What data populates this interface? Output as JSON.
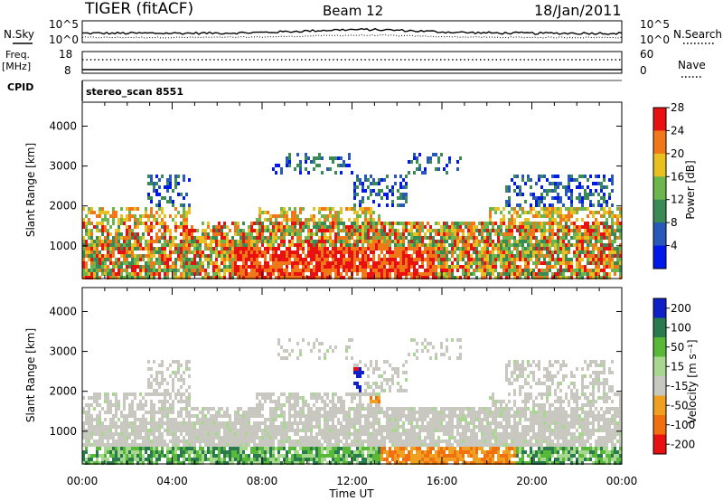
{
  "header": {
    "station": "TIGER (fitACF)",
    "beam": "Beam 12",
    "date": "18/Jan/2011"
  },
  "top_panels": {
    "nsky_label": "N.Sky",
    "nsearch_label": "N.Search",
    "count_ticks": [
      "10^5",
      "10^0"
    ],
    "freq_label_1": "Freq.",
    "freq_label_2": "[MHz]",
    "freq_ticks": [
      "18",
      "8"
    ],
    "nave_label": "Nave",
    "nave_ticks": [
      "60",
      "0"
    ],
    "cpid_label": "CPID",
    "cpid_value": "stereo_scan 8551"
  },
  "chart_data": [
    {
      "type": "heatmap",
      "name": "power",
      "ylabel": "Slant Range [km]",
      "yticks": [
        1000,
        2000,
        3000,
        4000
      ],
      "ylim": [
        180,
        4600
      ],
      "xticks": [
        "00:00",
        "04:00",
        "08:00",
        "12:00",
        "16:00",
        "20:00",
        "00:00"
      ],
      "colorbar": {
        "label": "Power [dB]",
        "ticks": [
          "4",
          "8",
          "12",
          "16",
          "20",
          "24",
          "28"
        ],
        "colors": [
          "#0018e8",
          "#2858b8",
          "#3a8a55",
          "#6db54d",
          "#e8c020",
          "#f07818",
          "#e81010"
        ]
      }
    },
    {
      "type": "heatmap",
      "name": "velocity",
      "ylabel": "Slant Range [km]",
      "yticks": [
        1000,
        2000,
        3000,
        4000
      ],
      "ylim": [
        180,
        4600
      ],
      "xticks": [
        "00:00",
        "04:00",
        "08:00",
        "12:00",
        "16:00",
        "20:00",
        "00:00"
      ],
      "xlabel": "Time UT",
      "colorbar": {
        "label": "Velocity [m s⁻¹]",
        "ticks": [
          "200",
          "100",
          "50",
          "15",
          "-15",
          "-50",
          "-100",
          "-200"
        ],
        "colors": [
          "#1020c8",
          "#2a7a50",
          "#58b838",
          "#a8d890",
          "#c8c8c0",
          "#f0a020",
          "#f07010",
          "#e81010"
        ]
      }
    }
  ]
}
